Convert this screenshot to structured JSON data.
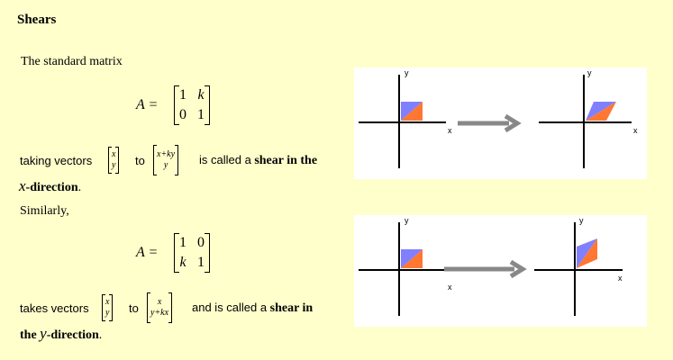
{
  "title": "Shears",
  "section1": {
    "intro": "The standard matrix",
    "lhs": "A =",
    "matrix": [
      "1",
      "k",
      "0",
      "1"
    ],
    "taking": "taking vectors",
    "from_vec": [
      "x",
      "y"
    ],
    "to": "to",
    "to_vec": [
      "x+ky",
      "y"
    ],
    "called": "is called a",
    "shear": "shear in the",
    "dir_var": "x",
    "dir_word": "-direction",
    "period": "."
  },
  "section2": {
    "similarly": "Similarly,",
    "lhs": "A =",
    "matrix": [
      "1",
      "0",
      "k",
      "1"
    ],
    "takes": "takes vectors",
    "from_vec": [
      "x",
      "y"
    ],
    "to": "to",
    "to_vec": [
      "x",
      "y+kx"
    ],
    "called": "and is called a",
    "shear": "shear in",
    "the": "the",
    "dir_var": "y",
    "dir_word": "-direction",
    "period": "."
  },
  "figures": {
    "axis_x": "x",
    "axis_y": "y",
    "colors": {
      "blue": "#8080ff",
      "orange": "#ff7733",
      "arrow": "#888888"
    }
  }
}
